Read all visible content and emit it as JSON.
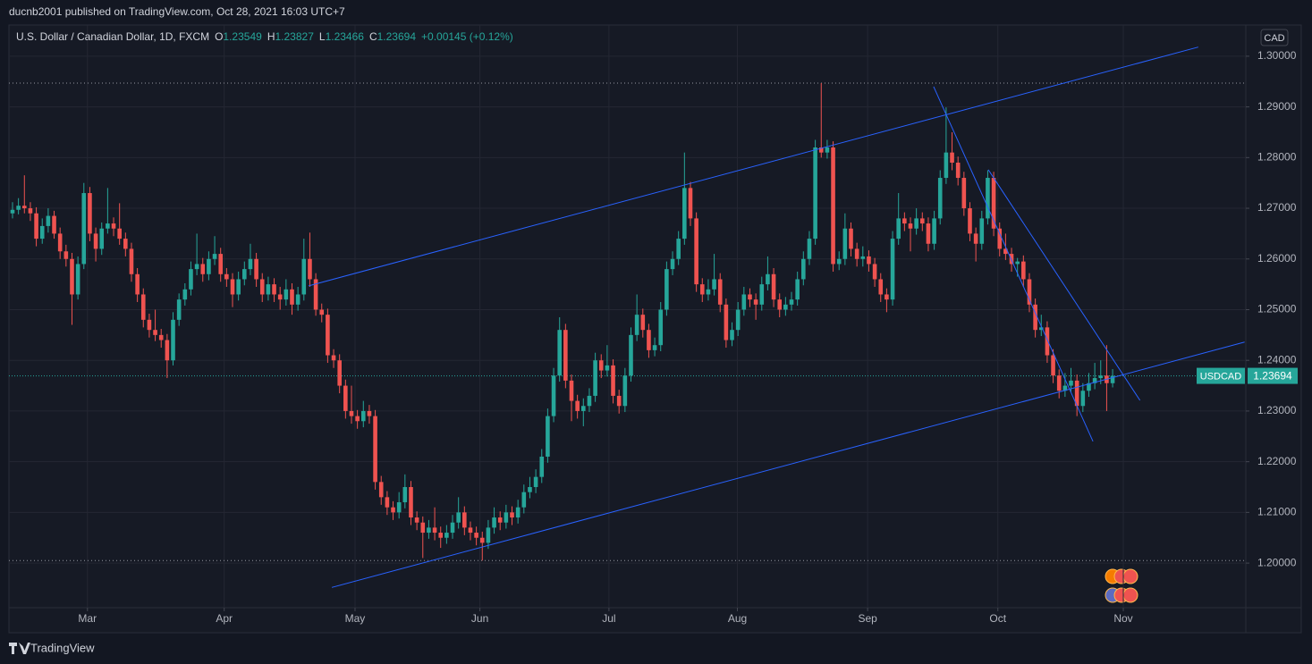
{
  "header": {
    "publisher": "ducnb2001 published on TradingView.com, Oct 28, 2021 16:03 UTC+7",
    "brand": "TradingView"
  },
  "chart_data": {
    "type": "candlestick",
    "legend": {
      "symbol": "U.S. Dollar / Canadian Dollar, 1D, FXCM",
      "ohlc_labels": [
        "O",
        "H",
        "L",
        "C"
      ],
      "change": "+0.00145 (+0.12%)"
    },
    "currency": "CAD",
    "ticker": "USDCAD",
    "up_color": "#26a69a",
    "down_color": "#ef5350",
    "line_color": "#2962ff",
    "grid": true,
    "xlim": [
      -0.6,
      207.4
    ],
    "xticks": [
      {
        "value": 12.6,
        "label": "Mar"
      },
      {
        "value": 35.6,
        "label": "Apr"
      },
      {
        "value": 57.6,
        "label": "May"
      },
      {
        "value": 78.6,
        "label": "Jun"
      },
      {
        "value": 100.3,
        "label": "Jul"
      },
      {
        "value": 121.9,
        "label": "Aug"
      },
      {
        "value": 143.8,
        "label": "Sep"
      },
      {
        "value": 165.7,
        "label": "Oct"
      },
      {
        "value": 186.8,
        "label": "Nov"
      }
    ],
    "ylim": [
      1.1912,
      1.3058
    ],
    "yticks": [
      {
        "value": 1.2,
        "label": "1.20000"
      },
      {
        "value": 1.21,
        "label": "1.21000"
      },
      {
        "value": 1.22,
        "label": "1.22000"
      },
      {
        "value": 1.23,
        "label": "1.23000"
      },
      {
        "value": 1.24,
        "label": "1.24000"
      },
      {
        "value": 1.25,
        "label": "1.25000"
      },
      {
        "value": 1.26,
        "label": "1.26000"
      },
      {
        "value": 1.27,
        "label": "1.27000"
      },
      {
        "value": 1.28,
        "label": "1.28000"
      },
      {
        "value": 1.29,
        "label": "1.29000"
      },
      {
        "value": 1.3,
        "label": "1.30000"
      }
    ],
    "trendlines": [
      {
        "from": [
          49.8,
          1.2547
        ],
        "to": [
          199.4,
          1.3018
        ]
      },
      {
        "from": [
          53.7,
          1.1952
        ],
        "to": [
          207.2,
          1.2436
        ]
      },
      {
        "from": [
          154.9,
          1.294
        ],
        "to": [
          181.7,
          1.224
        ]
      },
      {
        "from": [
          164.1,
          1.2776
        ],
        "to": [
          189.6,
          1.2321
        ]
      }
    ],
    "candles": [
      [
        1.269,
        1.2712,
        1.268,
        1.2697
      ],
      [
        1.2697,
        1.272,
        1.2688,
        1.2705
      ],
      [
        1.2705,
        1.2765,
        1.269,
        1.27
      ],
      [
        1.27,
        1.2712,
        1.2675,
        1.269
      ],
      [
        1.269,
        1.2702,
        1.2625,
        1.264
      ],
      [
        1.264,
        1.268,
        1.263,
        1.2665
      ],
      [
        1.2665,
        1.27,
        1.2652,
        1.2685
      ],
      [
        1.2685,
        1.2695,
        1.264,
        1.265
      ],
      [
        1.265,
        1.2662,
        1.26,
        1.2615
      ],
      [
        1.2615,
        1.2628,
        1.2585,
        1.26
      ],
      [
        1.26,
        1.2612,
        1.247,
        1.253
      ],
      [
        1.253,
        1.2605,
        1.252,
        1.259
      ],
      [
        1.259,
        1.275,
        1.258,
        1.273
      ],
      [
        1.273,
        1.2742,
        1.2635,
        1.265
      ],
      [
        1.265,
        1.2662,
        1.2595,
        1.262
      ],
      [
        1.262,
        1.2672,
        1.2608,
        1.266
      ],
      [
        1.266,
        1.274,
        1.265,
        1.267
      ],
      [
        1.267,
        1.2682,
        1.2645,
        1.266
      ],
      [
        1.266,
        1.271,
        1.2628,
        1.264
      ],
      [
        1.264,
        1.2652,
        1.2605,
        1.262
      ],
      [
        1.262,
        1.2632,
        1.2555,
        1.257
      ],
      [
        1.257,
        1.2582,
        1.2515,
        1.253
      ],
      [
        1.253,
        1.2542,
        1.2465,
        1.248
      ],
      [
        1.248,
        1.2492,
        1.2445,
        1.246
      ],
      [
        1.246,
        1.25,
        1.2438,
        1.245
      ],
      [
        1.245,
        1.2462,
        1.2425,
        1.244
      ],
      [
        1.244,
        1.2452,
        1.2365,
        1.24
      ],
      [
        1.24,
        1.2495,
        1.239,
        1.248
      ],
      [
        1.248,
        1.2532,
        1.2468,
        1.252
      ],
      [
        1.252,
        1.2552,
        1.2508,
        1.254
      ],
      [
        1.254,
        1.2595,
        1.2528,
        1.258
      ],
      [
        1.258,
        1.265,
        1.2568,
        1.259
      ],
      [
        1.259,
        1.2602,
        1.2555,
        1.257
      ],
      [
        1.257,
        1.2615,
        1.2558,
        1.26
      ],
      [
        1.26,
        1.2645,
        1.2588,
        1.261
      ],
      [
        1.261,
        1.2622,
        1.2555,
        1.257
      ],
      [
        1.257,
        1.2582,
        1.2545,
        1.256
      ],
      [
        1.256,
        1.2572,
        1.2505,
        1.253
      ],
      [
        1.253,
        1.2575,
        1.2518,
        1.256
      ],
      [
        1.256,
        1.2595,
        1.2548,
        1.258
      ],
      [
        1.258,
        1.263,
        1.2568,
        1.26
      ],
      [
        1.26,
        1.2612,
        1.2545,
        1.256
      ],
      [
        1.256,
        1.2572,
        1.2515,
        1.253
      ],
      [
        1.253,
        1.2565,
        1.2518,
        1.255
      ],
      [
        1.255,
        1.2562,
        1.2515,
        1.253
      ],
      [
        1.253,
        1.2545,
        1.25,
        1.252
      ],
      [
        1.252,
        1.256,
        1.2508,
        1.254
      ],
      [
        1.254,
        1.2552,
        1.249,
        1.251
      ],
      [
        1.251,
        1.2545,
        1.2498,
        1.253
      ],
      [
        1.253,
        1.264,
        1.2518,
        1.26
      ],
      [
        1.26,
        1.2652,
        1.2545,
        1.256
      ],
      [
        1.256,
        1.2572,
        1.2488,
        1.25
      ],
      [
        1.25,
        1.2512,
        1.2475,
        1.249
      ],
      [
        1.249,
        1.2502,
        1.2395,
        1.241
      ],
      [
        1.241,
        1.2422,
        1.2385,
        1.24
      ],
      [
        1.24,
        1.2412,
        1.2335,
        1.235
      ],
      [
        1.235,
        1.2362,
        1.2285,
        1.23
      ],
      [
        1.23,
        1.235,
        1.2275,
        1.229
      ],
      [
        1.229,
        1.2302,
        1.2265,
        1.228
      ],
      [
        1.228,
        1.232,
        1.2268,
        1.23
      ],
      [
        1.23,
        1.2312,
        1.2275,
        1.229
      ],
      [
        1.229,
        1.2302,
        1.2145,
        1.216
      ],
      [
        1.216,
        1.2172,
        1.2115,
        1.213
      ],
      [
        1.213,
        1.2142,
        1.2095,
        1.211
      ],
      [
        1.211,
        1.2122,
        1.2085,
        1.21
      ],
      [
        1.21,
        1.214,
        1.2088,
        1.212
      ],
      [
        1.212,
        1.2175,
        1.2108,
        1.215
      ],
      [
        1.215,
        1.2162,
        1.2075,
        1.209
      ],
      [
        1.209,
        1.2102,
        1.2065,
        1.208
      ],
      [
        1.208,
        1.2092,
        1.201,
        1.206
      ],
      [
        1.206,
        1.2085,
        1.2048,
        1.207
      ],
      [
        1.207,
        1.211,
        1.2045,
        1.206
      ],
      [
        1.206,
        1.2072,
        1.203,
        1.205
      ],
      [
        1.205,
        1.2075,
        1.2038,
        1.206
      ],
      [
        1.206,
        1.2095,
        1.2048,
        1.208
      ],
      [
        1.208,
        1.213,
        1.2068,
        1.21
      ],
      [
        1.21,
        1.2112,
        1.2055,
        1.207
      ],
      [
        1.207,
        1.2082,
        1.2045,
        1.206
      ],
      [
        1.206,
        1.2072,
        1.2035,
        1.205
      ],
      [
        1.205,
        1.2062,
        1.2005,
        1.204
      ],
      [
        1.204,
        1.2085,
        1.2028,
        1.207
      ],
      [
        1.207,
        1.211,
        1.2058,
        1.209
      ],
      [
        1.209,
        1.2102,
        1.2065,
        1.208
      ],
      [
        1.208,
        1.2115,
        1.2068,
        1.21
      ],
      [
        1.21,
        1.2112,
        1.2075,
        1.209
      ],
      [
        1.209,
        1.2125,
        1.2078,
        1.211
      ],
      [
        1.211,
        1.2155,
        1.2098,
        1.214
      ],
      [
        1.214,
        1.217,
        1.2128,
        1.215
      ],
      [
        1.215,
        1.2185,
        1.2138,
        1.217
      ],
      [
        1.217,
        1.2225,
        1.2158,
        1.221
      ],
      [
        1.221,
        1.2305,
        1.2198,
        1.229
      ],
      [
        1.229,
        1.2385,
        1.2278,
        1.237
      ],
      [
        1.237,
        1.2485,
        1.2358,
        1.246
      ],
      [
        1.246,
        1.2472,
        1.2345,
        1.236
      ],
      [
        1.236,
        1.2372,
        1.228,
        1.232
      ],
      [
        1.232,
        1.2332,
        1.2285,
        1.23
      ],
      [
        1.23,
        1.2325,
        1.227,
        1.231
      ],
      [
        1.231,
        1.2345,
        1.2298,
        1.233
      ],
      [
        1.233,
        1.2415,
        1.2318,
        1.24
      ],
      [
        1.24,
        1.2412,
        1.2365,
        1.238
      ],
      [
        1.238,
        1.243,
        1.2368,
        1.239
      ],
      [
        1.239,
        1.2402,
        1.2315,
        1.233
      ],
      [
        1.233,
        1.2342,
        1.2295,
        1.231
      ],
      [
        1.231,
        1.2385,
        1.2298,
        1.237
      ],
      [
        1.237,
        1.2465,
        1.2358,
        1.245
      ],
      [
        1.245,
        1.253,
        1.2438,
        1.249
      ],
      [
        1.249,
        1.2502,
        1.2445,
        1.246
      ],
      [
        1.246,
        1.2472,
        1.2405,
        1.242
      ],
      [
        1.242,
        1.2445,
        1.2408,
        1.243
      ],
      [
        1.243,
        1.2515,
        1.2418,
        1.25
      ],
      [
        1.25,
        1.2595,
        1.2488,
        1.258
      ],
      [
        1.258,
        1.2615,
        1.2568,
        1.26
      ],
      [
        1.26,
        1.2655,
        1.2588,
        1.264
      ],
      [
        1.264,
        1.281,
        1.2628,
        1.274
      ],
      [
        1.274,
        1.2752,
        1.2665,
        1.268
      ],
      [
        1.268,
        1.2692,
        1.2535,
        1.255
      ],
      [
        1.255,
        1.2562,
        1.2515,
        1.253
      ],
      [
        1.253,
        1.256,
        1.2518,
        1.254
      ],
      [
        1.254,
        1.261,
        1.2528,
        1.256
      ],
      [
        1.256,
        1.2572,
        1.2495,
        1.251
      ],
      [
        1.251,
        1.2522,
        1.2425,
        1.244
      ],
      [
        1.244,
        1.2475,
        1.2428,
        1.246
      ],
      [
        1.246,
        1.2515,
        1.2448,
        1.25
      ],
      [
        1.25,
        1.2545,
        1.2488,
        1.253
      ],
      [
        1.253,
        1.2542,
        1.2505,
        1.252
      ],
      [
        1.252,
        1.2532,
        1.248,
        1.251
      ],
      [
        1.251,
        1.2565,
        1.2498,
        1.255
      ],
      [
        1.255,
        1.2605,
        1.2538,
        1.257
      ],
      [
        1.257,
        1.2582,
        1.2505,
        1.252
      ],
      [
        1.252,
        1.2532,
        1.2485,
        1.25
      ],
      [
        1.25,
        1.2525,
        1.2488,
        1.251
      ],
      [
        1.251,
        1.2535,
        1.2498,
        1.252
      ],
      [
        1.252,
        1.2575,
        1.2508,
        1.256
      ],
      [
        1.256,
        1.2615,
        1.2548,
        1.26
      ],
      [
        1.26,
        1.2655,
        1.2588,
        1.264
      ],
      [
        1.264,
        1.2835,
        1.2628,
        1.282
      ],
      [
        1.282,
        1.2947,
        1.28,
        1.281
      ],
      [
        1.281,
        1.2835,
        1.2798,
        1.282
      ],
      [
        1.282,
        1.2832,
        1.2575,
        1.259
      ],
      [
        1.259,
        1.2615,
        1.2578,
        1.26
      ],
      [
        1.26,
        1.269,
        1.2588,
        1.266
      ],
      [
        1.266,
        1.2672,
        1.2605,
        1.262
      ],
      [
        1.262,
        1.2632,
        1.2585,
        1.26
      ],
      [
        1.26,
        1.2625,
        1.2585,
        1.2605
      ],
      [
        1.2605,
        1.2617,
        1.2575,
        1.259
      ],
      [
        1.259,
        1.2602,
        1.2545,
        1.256
      ],
      [
        1.256,
        1.2572,
        1.2515,
        1.253
      ],
      [
        1.253,
        1.2542,
        1.2495,
        1.252
      ],
      [
        1.252,
        1.2655,
        1.2508,
        1.264
      ],
      [
        1.264,
        1.273,
        1.2628,
        1.268
      ],
      [
        1.268,
        1.2692,
        1.2655,
        1.267
      ],
      [
        1.267,
        1.2682,
        1.2615,
        1.266
      ],
      [
        1.266,
        1.27,
        1.2648,
        1.268
      ],
      [
        1.268,
        1.2692,
        1.2655,
        1.267
      ],
      [
        1.267,
        1.2682,
        1.2615,
        1.263
      ],
      [
        1.263,
        1.2695,
        1.2618,
        1.268
      ],
      [
        1.268,
        1.2775,
        1.2668,
        1.276
      ],
      [
        1.276,
        1.2899,
        1.2748,
        1.281
      ],
      [
        1.281,
        1.285,
        1.2775,
        1.279
      ],
      [
        1.279,
        1.2802,
        1.2745,
        1.276
      ],
      [
        1.276,
        1.2772,
        1.2685,
        1.27
      ],
      [
        1.27,
        1.2712,
        1.2635,
        1.265
      ],
      [
        1.265,
        1.2662,
        1.2595,
        1.263
      ],
      [
        1.263,
        1.2695,
        1.2618,
        1.268
      ],
      [
        1.268,
        1.2775,
        1.2668,
        1.276
      ],
      [
        1.276,
        1.2772,
        1.2645,
        1.266
      ],
      [
        1.266,
        1.2672,
        1.2605,
        1.262
      ],
      [
        1.262,
        1.265,
        1.2598,
        1.261
      ],
      [
        1.261,
        1.2622,
        1.2575,
        1.259
      ],
      [
        1.259,
        1.2602,
        1.2565,
        1.2595
      ],
      [
        1.2595,
        1.2607,
        1.2545,
        1.256
      ],
      [
        1.256,
        1.2572,
        1.2495,
        1.251
      ],
      [
        1.251,
        1.2522,
        1.2445,
        1.246
      ],
      [
        1.246,
        1.249,
        1.2448,
        1.2465
      ],
      [
        1.2465,
        1.2477,
        1.2395,
        1.241
      ],
      [
        1.241,
        1.2422,
        1.2355,
        1.237
      ],
      [
        1.237,
        1.2382,
        1.2325,
        1.234
      ],
      [
        1.234,
        1.2375,
        1.2328,
        1.235
      ],
      [
        1.235,
        1.2385,
        1.2338,
        1.236
      ],
      [
        1.236,
        1.2372,
        1.229,
        1.231
      ],
      [
        1.231,
        1.2355,
        1.2298,
        1.234
      ],
      [
        1.234,
        1.2375,
        1.2328,
        1.2355
      ],
      [
        1.2355,
        1.2395,
        1.2343,
        1.2365
      ],
      [
        1.2365,
        1.24,
        1.2353,
        1.237
      ],
      [
        1.237,
        1.243,
        1.23,
        1.2355
      ],
      [
        1.23549,
        1.23827,
        1.23466,
        1.23694
      ]
    ]
  }
}
